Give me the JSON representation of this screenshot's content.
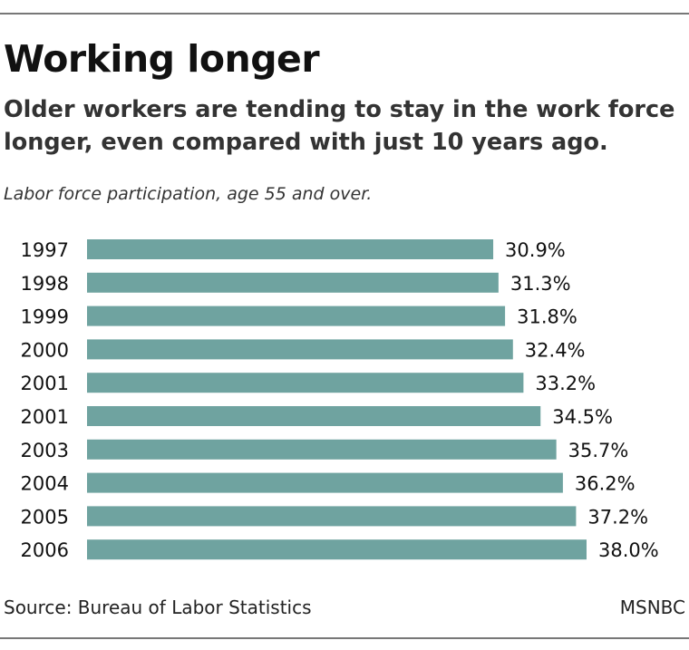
{
  "title": "Working longer",
  "subtitle": {
    "line1": "Older workers are tending to stay in the work force",
    "line2": "longer, even compared with just 10 years ago."
  },
  "caption": "Labor force participation, age 55 and over.",
  "source": "Source: Bureau of Labor Statistics",
  "credit": "MSNBC",
  "colors": {
    "bar": "#6fa3a0",
    "text": "#111111"
  },
  "chart_data": {
    "type": "bar",
    "orientation": "horizontal",
    "title": "Working longer",
    "categories": [
      "1997",
      "1998",
      "1999",
      "2000",
      "2001",
      "2001",
      "2003",
      "2004",
      "2005",
      "2006"
    ],
    "values": [
      30.9,
      31.3,
      31.8,
      32.4,
      33.2,
      34.5,
      35.7,
      36.2,
      37.2,
      38.0
    ],
    "value_labels": [
      "30.9%",
      "31.3%",
      "31.8%",
      "32.4%",
      "33.2%",
      "34.5%",
      "35.7%",
      "36.2%",
      "37.2%",
      "38.0%"
    ],
    "unit": "%",
    "xlim": [
      0,
      38.0
    ],
    "grid": false,
    "legend": "none"
  }
}
